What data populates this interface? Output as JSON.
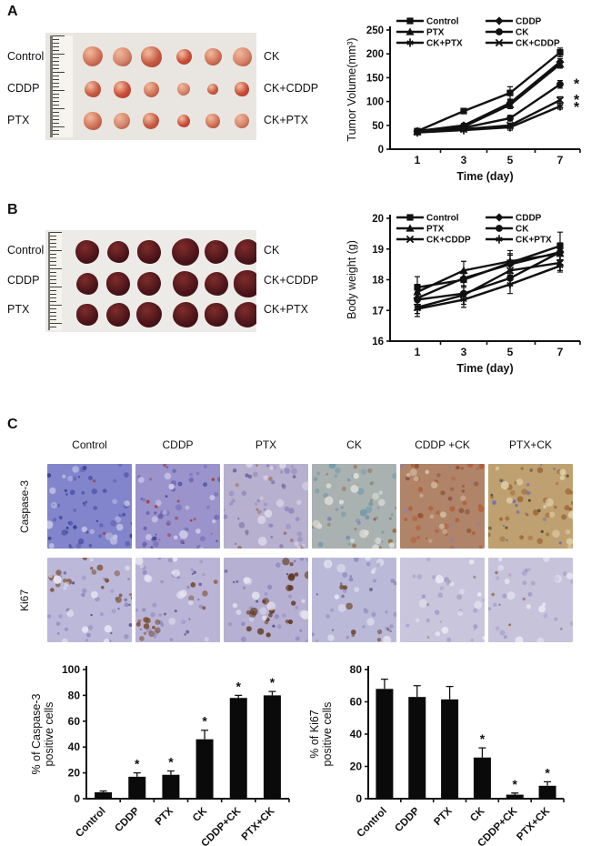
{
  "panels": {
    "A": {
      "label": "A",
      "photo": {
        "left_labels": [
          "Control",
          "CDDP",
          "PTX"
        ],
        "right_labels": [
          "CK",
          "CK+CDDP",
          "CK+PTX"
        ]
      }
    },
    "B": {
      "label": "B",
      "photo": {
        "left_labels": [
          "Control",
          "CDDP",
          "PTX"
        ],
        "right_labels": [
          "CK",
          "CK+CDDP",
          "CK+PTX"
        ]
      }
    },
    "C": {
      "label": "C",
      "column_headers": [
        "Control",
        "CDDP",
        "PTX",
        "CK",
        "CDDP +CK",
        "PTX+CK"
      ],
      "row_labels": [
        "Caspase-3",
        "Ki67"
      ],
      "cells": {
        "caspase3": [
          {
            "base": "#8285cb",
            "specks": [
              {
                "c": "#5054a8",
                "n": 30,
                "r1": 1.5,
                "r2": 3.5
              },
              {
                "c": "#34388c",
                "n": 18,
                "r1": 1,
                "r2": 2.5
              },
              {
                "c": "#c9cbe8",
                "n": 16,
                "r1": 2,
                "r2": 5
              },
              {
                "c": "#a23a30",
                "n": 2,
                "r1": 1,
                "r2": 1.6
              }
            ]
          },
          {
            "base": "#9a93cc",
            "specks": [
              {
                "c": "#6a63b0",
                "n": 28,
                "r1": 1.5,
                "r2": 3.5
              },
              {
                "c": "#a23a30",
                "n": 14,
                "r1": 1,
                "r2": 2.2
              },
              {
                "c": "#3f3f95",
                "n": 12,
                "r1": 1,
                "r2": 2.5
              },
              {
                "c": "#d2cee9",
                "n": 14,
                "r1": 2,
                "r2": 5
              }
            ]
          },
          {
            "base": "#b7b0cf",
            "specks": [
              {
                "c": "#8d84b8",
                "n": 26,
                "r1": 1.5,
                "r2": 3.5
              },
              {
                "c": "#6a5f9f",
                "n": 14,
                "r1": 1,
                "r2": 2.5
              },
              {
                "c": "#9a6a4f",
                "n": 10,
                "r1": 1,
                "r2": 2.5
              },
              {
                "c": "#ded9e9",
                "n": 14,
                "r1": 2,
                "r2": 5
              }
            ]
          },
          {
            "base": "#a9b2b0",
            "specks": [
              {
                "c": "#6f9aa8",
                "n": 22,
                "r1": 1.5,
                "r2": 4
              },
              {
                "c": "#9a6a4a",
                "n": 16,
                "r1": 1.5,
                "r2": 3
              },
              {
                "c": "#7a84b8",
                "n": 12,
                "r1": 1,
                "r2": 2.5
              },
              {
                "c": "#e2e0da",
                "n": 16,
                "r1": 2,
                "r2": 5
              }
            ]
          },
          {
            "base": "#b08468",
            "specks": [
              {
                "c": "#b45a35",
                "n": 30,
                "r1": 1.5,
                "r2": 3.5
              },
              {
                "c": "#8a5138",
                "n": 16,
                "r1": 1,
                "r2": 3
              },
              {
                "c": "#8d7fb0",
                "n": 12,
                "r1": 1,
                "r2": 2.5
              },
              {
                "c": "#d8c2a8",
                "n": 12,
                "r1": 2,
                "r2": 5
              }
            ]
          },
          {
            "base": "#bfa071",
            "specks": [
              {
                "c": "#9a6230",
                "n": 28,
                "r1": 1.5,
                "r2": 3.5
              },
              {
                "c": "#6a70b0",
                "n": 16,
                "r1": 1,
                "r2": 2.5
              },
              {
                "c": "#4a4430",
                "n": 10,
                "r1": 1,
                "r2": 2
              },
              {
                "c": "#e2d3ac",
                "n": 14,
                "r1": 2,
                "r2": 5
              }
            ]
          }
        ],
        "ki67": [
          {
            "base": "#bcb8da",
            "specks": [
              {
                "c": "#8f88c0",
                "n": 24,
                "r1": 1.5,
                "r2": 3
              },
              {
                "c": "#7a4a28",
                "n": 18,
                "r1": 1.5,
                "r2": 3.5,
                "cl": true
              },
              {
                "c": "#574a85",
                "n": 10,
                "r1": 1,
                "r2": 2
              },
              {
                "c": "#e8e6f1",
                "n": 12,
                "r1": 2,
                "r2": 5
              }
            ]
          },
          {
            "base": "#bab4d6",
            "specks": [
              {
                "c": "#8f88c0",
                "n": 24,
                "r1": 1.5,
                "r2": 3
              },
              {
                "c": "#7a4828",
                "n": 16,
                "r1": 1.5,
                "r2": 3.5,
                "cl": true
              },
              {
                "c": "#574a85",
                "n": 10,
                "r1": 1,
                "r2": 2
              },
              {
                "c": "#e8e6f1",
                "n": 12,
                "r1": 2,
                "r2": 5
              }
            ]
          },
          {
            "base": "#b6b0d2",
            "specks": [
              {
                "c": "#8f88c0",
                "n": 20,
                "r1": 1.5,
                "r2": 3
              },
              {
                "c": "#5e3418",
                "n": 24,
                "r1": 2,
                "r2": 4.5,
                "cl": true
              },
              {
                "c": "#574a85",
                "n": 8,
                "r1": 1,
                "r2": 2
              },
              {
                "c": "#e8e6f1",
                "n": 12,
                "r1": 2,
                "r2": 5
              }
            ]
          },
          {
            "base": "#babad8",
            "specks": [
              {
                "c": "#8f88c0",
                "n": 22,
                "r1": 1.5,
                "r2": 3
              },
              {
                "c": "#6a4020",
                "n": 8,
                "r1": 1.5,
                "r2": 4,
                "cl": true
              },
              {
                "c": "#574a85",
                "n": 8,
                "r1": 1,
                "r2": 2
              },
              {
                "c": "#e8e6f1",
                "n": 12,
                "r1": 2,
                "r2": 5
              }
            ]
          },
          {
            "base": "#c8c5dd",
            "specks": [
              {
                "c": "#a29ac8",
                "n": 20,
                "r1": 1.5,
                "r2": 3
              },
              {
                "c": "#9a8d7a",
                "n": 6,
                "r1": 1,
                "r2": 2
              },
              {
                "c": "#eeedf5",
                "n": 12,
                "r1": 2,
                "r2": 5
              }
            ]
          },
          {
            "base": "#c6c3db",
            "specks": [
              {
                "c": "#a29ac8",
                "n": 20,
                "r1": 1.5,
                "r2": 3
              },
              {
                "c": "#8a6a4a",
                "n": 6,
                "r1": 1,
                "r2": 2
              },
              {
                "c": "#eeedf5",
                "n": 12,
                "r1": 2,
                "r2": 5
              }
            ]
          }
        ]
      }
    }
  },
  "chart_data": [
    {
      "type": "line",
      "title": "",
      "xlabel": "Time (day)",
      "ylabel": "Tumor Volume(mm³)",
      "x": [
        1,
        3,
        5,
        7
      ],
      "ylim": [
        0,
        250
      ],
      "yticks": [
        0,
        50,
        100,
        150,
        200,
        250
      ],
      "grid": false,
      "legend_position": "top-inside",
      "legend_columns": [
        [
          "Control",
          "PTX",
          "CK+PTX"
        ],
        [
          "CDDP",
          "CK",
          "CK+CDDP"
        ]
      ],
      "series": [
        {
          "name": "Control",
          "marker": "square",
          "values": [
            38,
            80,
            118,
            203
          ],
          "errors": [
            4,
            5,
            13,
            9
          ]
        },
        {
          "name": "CDDP",
          "marker": "diamond",
          "values": [
            38,
            50,
            97,
            183
          ],
          "errors": [
            3,
            4,
            6,
            7
          ]
        },
        {
          "name": "PTX",
          "marker": "triangle",
          "values": [
            37,
            47,
            93,
            178
          ],
          "errors": [
            3,
            5,
            8,
            8
          ]
        },
        {
          "name": "CK",
          "marker": "circle",
          "values": [
            36,
            45,
            65,
            136
          ],
          "errors": [
            3,
            4,
            6,
            8
          ]
        },
        {
          "name": "CK+CDDP",
          "marker": "x",
          "values": [
            36,
            42,
            50,
            103
          ],
          "errors": [
            3,
            3,
            5,
            7
          ]
        },
        {
          "name": "CK+PTX",
          "marker": "asterisk",
          "values": [
            35,
            40,
            46,
            90
          ],
          "errors": [
            3,
            3,
            6,
            6
          ]
        }
      ],
      "sig_annotations": [
        {
          "text": "*",
          "at_value": 136
        },
        {
          "text": "*",
          "at_value": 103
        },
        {
          "text": "*",
          "at_value": 88
        }
      ]
    },
    {
      "type": "line",
      "title": "",
      "xlabel": "Time (day)",
      "ylabel": "Body weight (g)",
      "x": [
        1,
        3,
        5,
        7
      ],
      "ylim": [
        16,
        20
      ],
      "yticks": [
        16,
        17,
        18,
        19,
        20
      ],
      "grid": false,
      "legend_position": "top-inside",
      "legend_columns": [
        [
          "Control",
          "PTX",
          "CK+CDDP"
        ],
        [
          "CDDP",
          "CK",
          "CK+PTX"
        ]
      ],
      "series": [
        {
          "name": "Control",
          "marker": "square",
          "values": [
            17.75,
            18.0,
            18.55,
            19.1
          ],
          "errors": [
            0.35,
            0.2,
            0.3,
            0.45
          ]
        },
        {
          "name": "CDDP",
          "marker": "diamond",
          "values": [
            17.4,
            18.05,
            18.5,
            18.9
          ],
          "errors": [
            0.2,
            0.25,
            0.3,
            0.25
          ]
        },
        {
          "name": "PTX",
          "marker": "triangle",
          "values": [
            17.6,
            18.3,
            18.6,
            18.85
          ],
          "errors": [
            0.25,
            0.3,
            0.35,
            0.2
          ]
        },
        {
          "name": "CK",
          "marker": "circle",
          "values": [
            17.35,
            17.55,
            18.05,
            18.9
          ],
          "errors": [
            0.2,
            0.2,
            0.25,
            0.3
          ]
        },
        {
          "name": "CK+CDDP",
          "marker": "x",
          "values": [
            17.1,
            17.5,
            18.3,
            18.55
          ],
          "errors": [
            0.2,
            0.3,
            0.3,
            0.25
          ]
        },
        {
          "name": "CK+PTX",
          "marker": "asterisk",
          "values": [
            17.05,
            17.35,
            17.85,
            18.45
          ],
          "errors": [
            0.25,
            0.25,
            0.3,
            0.2
          ]
        }
      ],
      "sig_annotations": []
    },
    {
      "type": "bar",
      "title": "",
      "xlabel": "",
      "ylabel_lines": [
        "% of Caspase-3",
        "positive cells"
      ],
      "categories": [
        "Control",
        "CDDP",
        "PTX",
        "CK",
        "CDDP+CK",
        "PTX+CK"
      ],
      "values": [
        5,
        17,
        18.5,
        46,
        78,
        80
      ],
      "errors": [
        1,
        3,
        3,
        7,
        2,
        3
      ],
      "significant": [
        false,
        true,
        true,
        true,
        true,
        true
      ],
      "sig_symbol": "*",
      "ylim": [
        0,
        100
      ],
      "yticks": [
        0,
        20,
        40,
        60,
        80,
        100
      ],
      "bar_color": "#0a0a0a",
      "grid": false
    },
    {
      "type": "bar",
      "title": "",
      "xlabel": "",
      "ylabel_lines": [
        "% of Ki67",
        "positive cells"
      ],
      "categories": [
        "Control",
        "CDDP",
        "PTX",
        "CK",
        "CDDP+CK",
        "PTX+CK"
      ],
      "values": [
        68,
        63,
        61.5,
        25.5,
        2.5,
        8
      ],
      "errors": [
        6,
        7,
        8,
        6,
        1,
        2.5
      ],
      "significant": [
        false,
        false,
        false,
        true,
        true,
        true
      ],
      "sig_symbol": "*",
      "ylim": [
        0,
        80
      ],
      "yticks": [
        0,
        20,
        40,
        60,
        80
      ],
      "bar_color": "#0a0a0a",
      "grid": false
    }
  ],
  "colors": {
    "line_series": "#111111",
    "tumor_photo_bg": "#e9e6e1",
    "tumor_pink": "#cf7258",
    "liver_maroon": "#4f161c"
  }
}
